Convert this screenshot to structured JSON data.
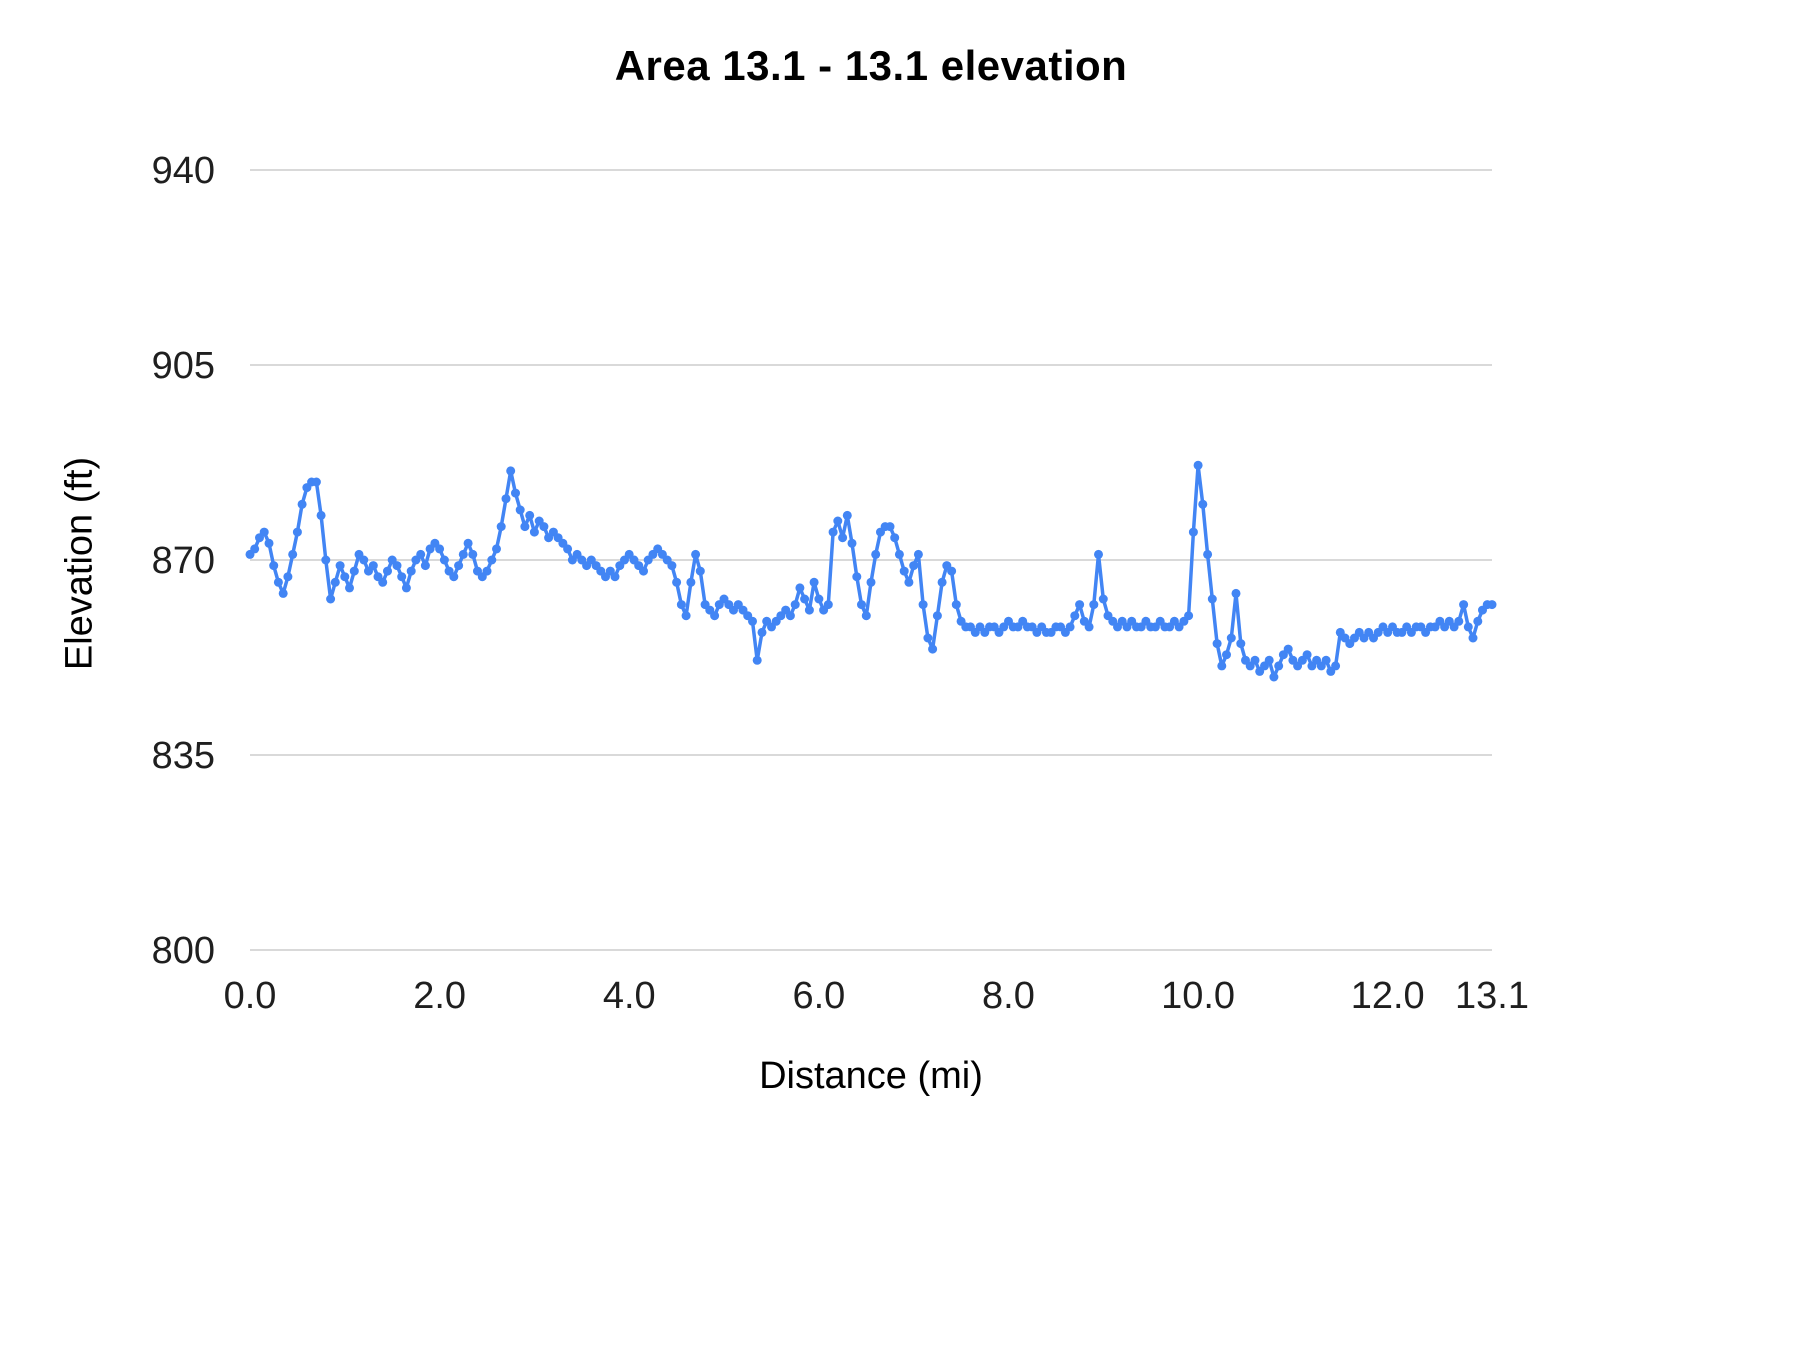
{
  "colors": {
    "series": "#4285f4",
    "grid": "#d9d9d9",
    "tick_text": "#1f1f1f",
    "title_text": "#000000",
    "background": "#ffffff"
  },
  "chart_data": {
    "type": "line",
    "title": "Area 13.1 - 13.1 elevation",
    "xlabel": "Distance (mi)",
    "ylabel": "Elevation (ft)",
    "xlim": [
      0,
      13.1
    ],
    "ylim": [
      800,
      940
    ],
    "grid": "horizontal",
    "legend": "none",
    "marker": "circle",
    "x_ticks": [
      {
        "value": 0.0,
        "label": "0.0"
      },
      {
        "value": 2.0,
        "label": "2.0"
      },
      {
        "value": 4.0,
        "label": "4.0"
      },
      {
        "value": 6.0,
        "label": "6.0"
      },
      {
        "value": 8.0,
        "label": "8.0"
      },
      {
        "value": 10.0,
        "label": "10.0"
      },
      {
        "value": 12.0,
        "label": "12.0"
      },
      {
        "value": 13.1,
        "label": "13.1"
      }
    ],
    "y_ticks": [
      {
        "value": 800,
        "label": "800"
      },
      {
        "value": 835,
        "label": "835"
      },
      {
        "value": 870,
        "label": "870"
      },
      {
        "value": 905,
        "label": "905"
      },
      {
        "value": 940,
        "label": "940"
      }
    ],
    "series": [
      {
        "name": "elevation",
        "x_start": 0.0,
        "x_step": 0.05,
        "x_end": 13.1,
        "values": [
          871,
          872,
          874,
          875,
          873,
          869,
          866,
          864,
          867,
          871,
          875,
          880,
          883,
          884,
          884,
          878,
          870,
          863,
          866,
          869,
          867,
          865,
          868,
          871,
          870,
          868,
          869,
          867,
          866,
          868,
          870,
          869,
          867,
          865,
          868,
          870,
          871,
          869,
          872,
          873,
          872,
          870,
          868,
          867,
          869,
          871,
          873,
          871,
          868,
          867,
          868,
          870,
          872,
          876,
          881,
          886,
          882,
          879,
          876,
          878,
          875,
          877,
          876,
          874,
          875,
          874,
          873,
          872,
          870,
          871,
          870,
          869,
          870,
          869,
          868,
          867,
          868,
          867,
          869,
          870,
          871,
          870,
          869,
          868,
          870,
          871,
          872,
          871,
          870,
          869,
          866,
          862,
          860,
          866,
          871,
          868,
          862,
          861,
          860,
          862,
          863,
          862,
          861,
          862,
          861,
          860,
          859,
          852,
          857,
          859,
          858,
          859,
          860,
          861,
          860,
          862,
          865,
          863,
          861,
          866,
          863,
          861,
          862,
          875,
          877,
          874,
          878,
          873,
          867,
          862,
          860,
          866,
          871,
          875,
          876,
          876,
          874,
          871,
          868,
          866,
          869,
          871,
          862,
          856,
          854,
          860,
          866,
          869,
          868,
          862,
          859,
          858,
          858,
          857,
          858,
          857,
          858,
          858,
          857,
          858,
          859,
          858,
          858,
          859,
          858,
          858,
          857,
          858,
          857,
          857,
          858,
          858,
          857,
          858,
          860,
          862,
          859,
          858,
          862,
          871,
          863,
          860,
          859,
          858,
          859,
          858,
          859,
          858,
          858,
          859,
          858,
          858,
          859,
          858,
          858,
          859,
          858,
          859,
          860,
          875,
          887,
          880,
          871,
          863,
          855,
          851,
          853,
          856,
          864,
          855,
          852,
          851,
          852,
          850,
          851,
          852,
          849,
          851,
          853,
          854,
          852,
          851,
          852,
          853,
          851,
          852,
          851,
          852,
          850,
          851,
          857,
          856,
          855,
          856,
          857,
          856,
          857,
          856,
          857,
          858,
          857,
          858,
          857,
          857,
          858,
          857,
          858,
          858,
          857,
          858,
          858,
          859,
          858,
          859,
          858,
          859,
          862,
          858,
          856,
          859,
          861,
          862,
          862
        ]
      }
    ]
  }
}
